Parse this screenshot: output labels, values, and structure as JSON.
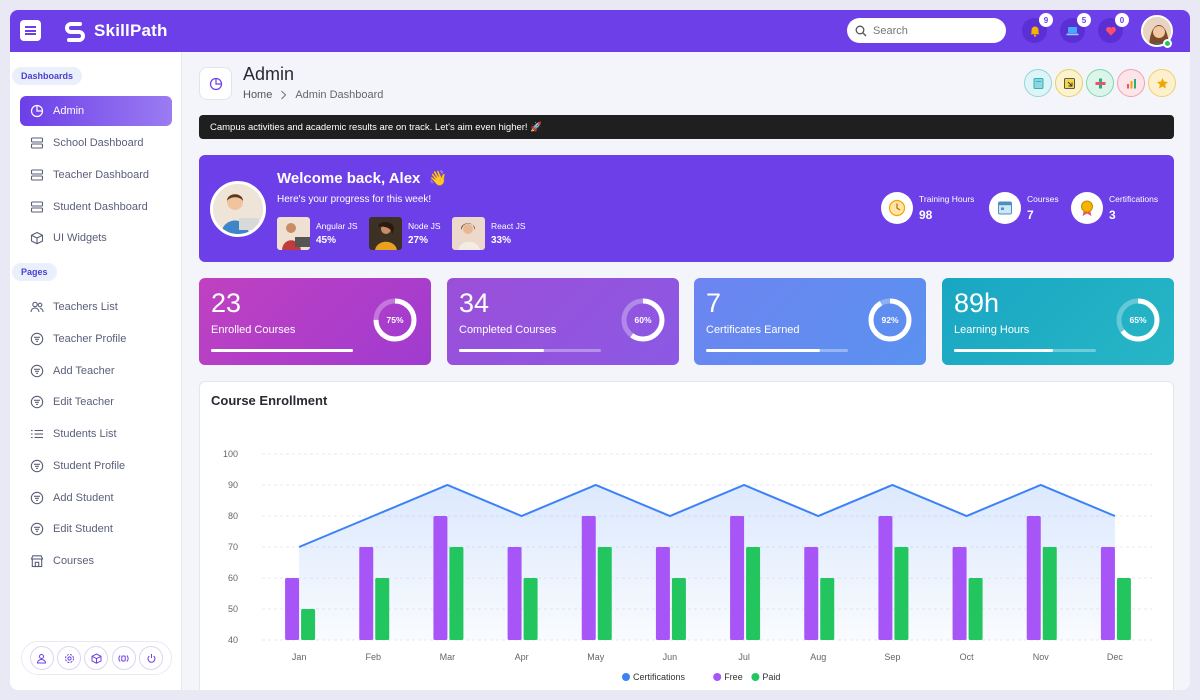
{
  "app": {
    "brand": "SkillPath",
    "search_placeholder": "Search",
    "notifications": [
      {
        "icon": "bell-icon",
        "count": "9",
        "color": "#f5b400"
      },
      {
        "icon": "laptop-icon",
        "count": "5",
        "color": "#46a7ff"
      },
      {
        "icon": "heart-icon",
        "count": "0",
        "color": "#ff4d6d"
      }
    ]
  },
  "sidebar": {
    "sections": [
      {
        "label": "Dashboards"
      },
      {
        "label": "Pages"
      }
    ],
    "items": [
      {
        "label": "Admin",
        "icon": "pie-chart-icon",
        "active": true
      },
      {
        "label": "School Dashboard",
        "icon": "server-icon"
      },
      {
        "label": "Teacher Dashboard",
        "icon": "server-icon"
      },
      {
        "label": "Student Dashboard",
        "icon": "server-icon"
      },
      {
        "label": "UI Widgets",
        "icon": "box-icon"
      },
      {
        "label": "Teachers List",
        "icon": "users-icon"
      },
      {
        "label": "Teacher Profile",
        "icon": "filter-circle-icon"
      },
      {
        "label": "Add Teacher",
        "icon": "filter-circle-icon"
      },
      {
        "label": "Edit Teacher",
        "icon": "filter-circle-icon"
      },
      {
        "label": "Students List",
        "icon": "list-icon"
      },
      {
        "label": "Student Profile",
        "icon": "filter-circle-icon"
      },
      {
        "label": "Add Student",
        "icon": "filter-circle-icon"
      },
      {
        "label": "Edit Student",
        "icon": "filter-circle-icon"
      },
      {
        "label": "Courses",
        "icon": "store-icon"
      }
    ],
    "footer_icons": [
      "user-icon",
      "settings-icon",
      "box-icon",
      "broadcast-icon",
      "power-icon"
    ]
  },
  "page": {
    "title": "Admin",
    "breadcrumb": {
      "home": "Home",
      "current": "Admin Dashboard"
    },
    "quick_actions": [
      {
        "icon": "notebook-icon",
        "color": "#2bb3c0"
      },
      {
        "icon": "sticky-note-icon",
        "color": "#e0b400"
      },
      {
        "icon": "puzzle-icon",
        "color": "#22b07d"
      },
      {
        "icon": "bar-chart-icon",
        "color": "#e8536b"
      },
      {
        "icon": "star-icon",
        "color": "#f0a500"
      }
    ]
  },
  "ticker": "Campus activities and academic results are on track. Let's aim even higher! 🚀",
  "welcome": {
    "title": "Welcome back, Alex",
    "wave": "👋",
    "subtitle": "Here's your progress for this week!",
    "courses": [
      {
        "name": "Angular JS",
        "percent": "45%"
      },
      {
        "name": "Node JS",
        "percent": "27%"
      },
      {
        "name": "React JS",
        "percent": "33%"
      }
    ],
    "stats": [
      {
        "label": "Training Hours",
        "value": "98",
        "icon": "clock-icon"
      },
      {
        "label": "Courses",
        "value": "7",
        "icon": "calendar-icon"
      },
      {
        "label": "Certifications",
        "value": "3",
        "icon": "award-icon"
      }
    ]
  },
  "stat_cards": [
    {
      "value": "23",
      "label": "Enrolled Courses",
      "percent": "75%",
      "ratio": 0.75,
      "bar": 1.0,
      "from": "#c041c0",
      "to": "#a03bd0"
    },
    {
      "value": "34",
      "label": "Completed Courses",
      "percent": "60%",
      "ratio": 0.6,
      "bar": 0.6,
      "from": "#9b4fd8",
      "to": "#8b59e4"
    },
    {
      "value": "7",
      "label": "Certificates Earned",
      "percent": "92%",
      "ratio": 0.92,
      "bar": 0.8,
      "from": "#6d84f0",
      "to": "#5a92f0"
    },
    {
      "value": "89h",
      "label": "Learning Hours",
      "percent": "65%",
      "ratio": 0.65,
      "bar": 0.7,
      "from": "#19a6c3",
      "to": "#27b6c6"
    }
  ],
  "chart_data": {
    "type": "bar",
    "title": "Course Enrollment",
    "categories": [
      "Jan",
      "Feb",
      "Mar",
      "Apr",
      "May",
      "Jun",
      "Jul",
      "Aug",
      "Sep",
      "Oct",
      "Nov",
      "Dec"
    ],
    "ylim": [
      40,
      100
    ],
    "yticks": [
      40,
      50,
      60,
      70,
      80,
      90,
      100
    ],
    "grid": true,
    "legend_position": "bottom",
    "series": [
      {
        "name": "Certifications",
        "kind": "area",
        "color": "#3b82f6",
        "values": [
          70,
          80,
          90,
          80,
          90,
          80,
          90,
          80,
          90,
          80,
          90,
          80
        ]
      },
      {
        "name": "Free",
        "kind": "bar",
        "color": "#a855f7",
        "values": [
          60,
          70,
          80,
          70,
          80,
          70,
          80,
          70,
          80,
          70,
          80,
          70
        ]
      },
      {
        "name": "Paid",
        "kind": "bar",
        "color": "#22c55e",
        "values": [
          50,
          60,
          70,
          60,
          70,
          60,
          70,
          60,
          70,
          60,
          70,
          60
        ]
      }
    ]
  }
}
